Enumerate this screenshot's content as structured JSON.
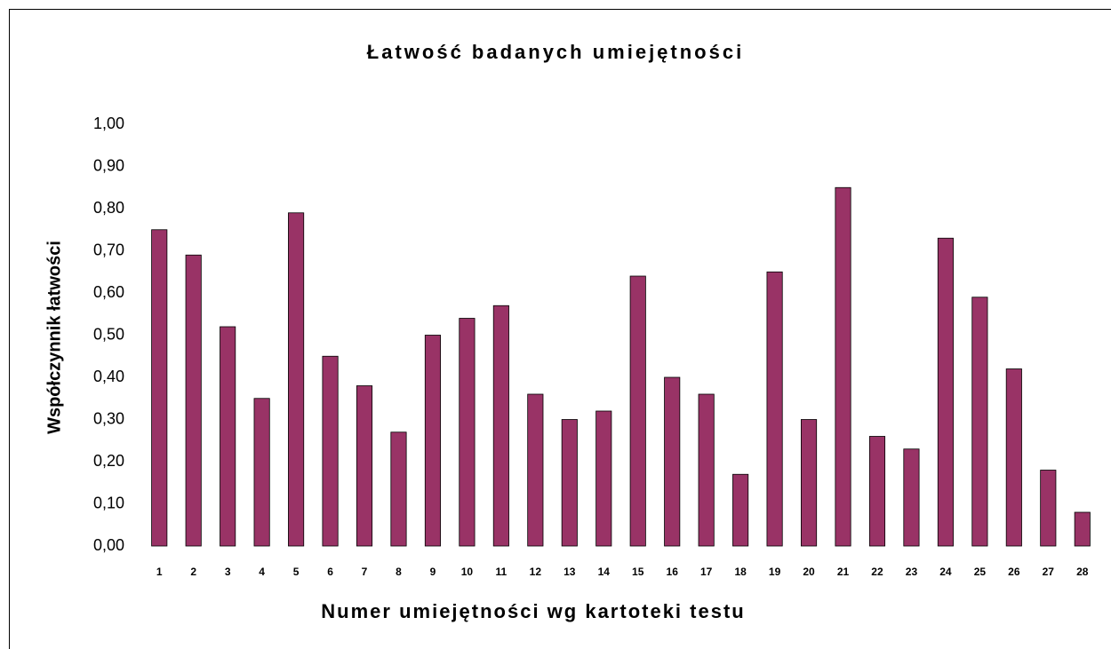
{
  "chart_data": {
    "type": "bar",
    "title": "Łatwość badanych umiejętności",
    "x_label": "Numer umiejętności wg kartoteki testu",
    "y_label": "Współczynnik łatwości",
    "categories": [
      "1",
      "2",
      "3",
      "4",
      "5",
      "6",
      "7",
      "8",
      "9",
      "10",
      "11",
      "12",
      "13",
      "14",
      "15",
      "16",
      "17",
      "18",
      "19",
      "20",
      "21",
      "22",
      "23",
      "24",
      "25",
      "26",
      "27",
      "28"
    ],
    "values": [
      0.75,
      0.69,
      0.52,
      0.35,
      0.79,
      0.45,
      0.38,
      0.27,
      0.5,
      0.54,
      0.57,
      0.36,
      0.3,
      0.32,
      0.64,
      0.4,
      0.36,
      0.17,
      0.65,
      0.3,
      0.85,
      0.26,
      0.23,
      0.73,
      0.59,
      0.42,
      0.18,
      0.08
    ],
    "color": "#993366",
    "ylim": [
      0,
      1
    ],
    "yticks": [
      {
        "value": 0,
        "label": "0,00"
      },
      {
        "value": 0.1,
        "label": "0,10"
      },
      {
        "value": 0.2,
        "label": "0,20"
      },
      {
        "value": 0.3,
        "label": "0,30"
      },
      {
        "value": 0.4,
        "label": "0,40"
      },
      {
        "value": 0.5,
        "label": "0,50"
      },
      {
        "value": 0.6,
        "label": "0,60"
      },
      {
        "value": 0.7,
        "label": "0,70"
      },
      {
        "value": 0.8,
        "label": "0,80"
      },
      {
        "value": 0.9,
        "label": "0,90"
      },
      {
        "value": 1,
        "label": "1,00"
      }
    ],
    "grid": false
  }
}
